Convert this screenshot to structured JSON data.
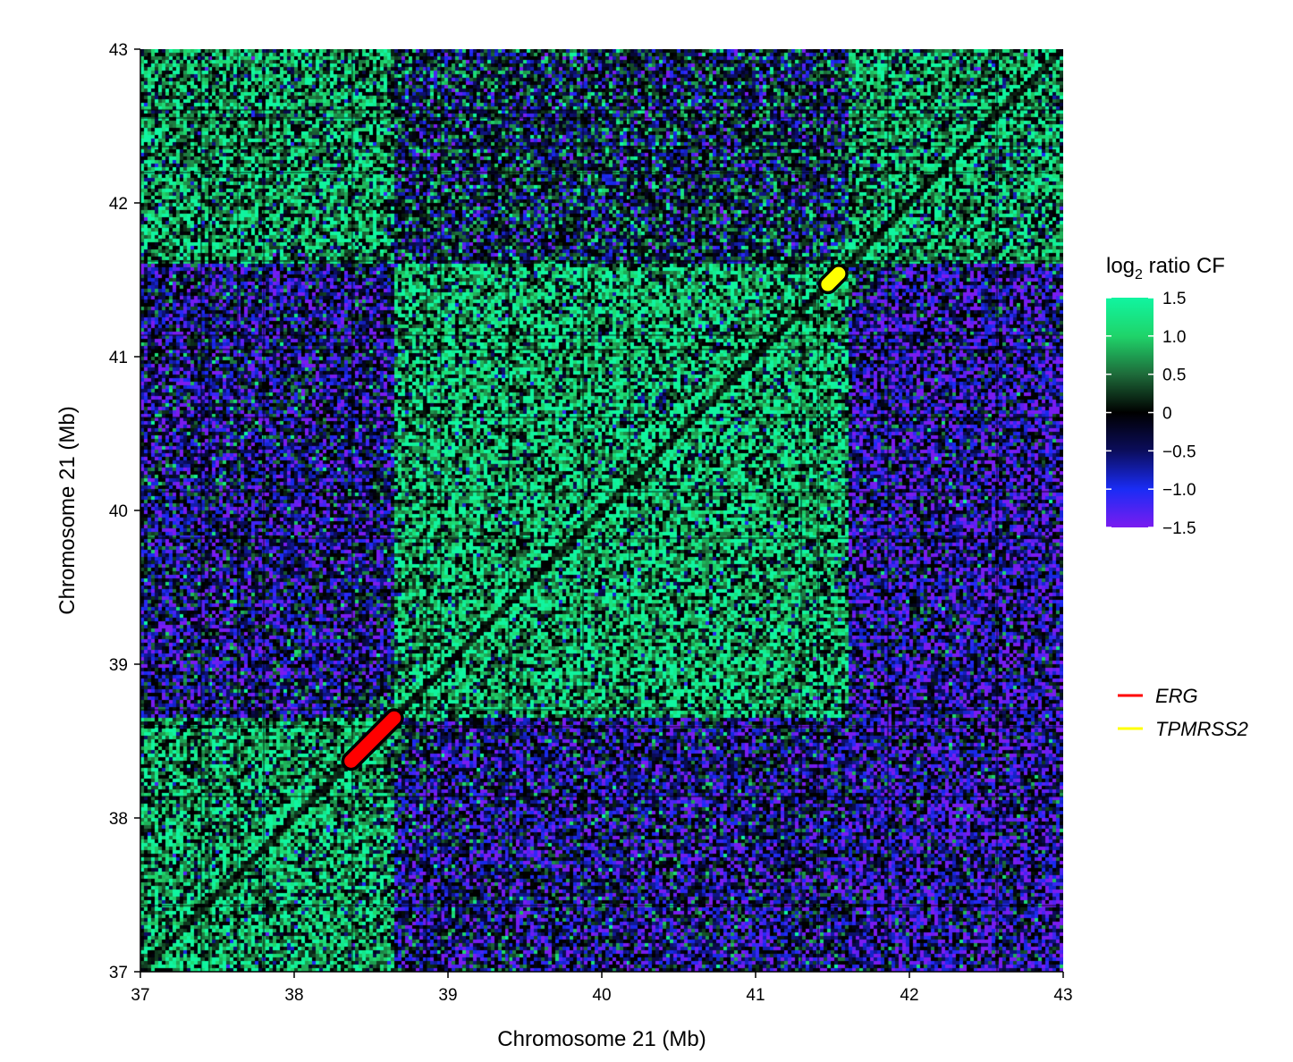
{
  "chart_data": {
    "type": "heatmap",
    "xlabel": "Chromosome 21 (Mb)",
    "ylabel": "Chromosome 21 (Mb)",
    "xlim": [
      37,
      43
    ],
    "ylim": [
      37,
      43
    ],
    "x_ticks": [
      "37",
      "38",
      "39",
      "40",
      "41",
      "42",
      "43"
    ],
    "y_ticks": [
      "37",
      "38",
      "39",
      "40",
      "41",
      "42",
      "43"
    ],
    "colorbar": {
      "title_base": "log",
      "title_sub": "2",
      "title_rest": " ratio CF",
      "range": [
        -1.5,
        1.5
      ],
      "ticks": [
        "1.5",
        "1.0",
        "0.5",
        "0",
        "−0.5",
        "−1.0",
        "−1.5"
      ],
      "tick_values": [
        1.5,
        1.0,
        0.5,
        0,
        -0.5,
        -1.0,
        -1.5
      ],
      "colors": [
        "#7a1cf0",
        "#1a2cf5",
        "#0b0d5c",
        "#000000",
        "#1e6b3a",
        "#1fd46a",
        "#10f5a0"
      ]
    },
    "domains": [
      {
        "x": [
          37.0,
          38.65
        ],
        "y": [
          37.0,
          38.65
        ],
        "value": 0.8
      },
      {
        "x": [
          38.65,
          41.6
        ],
        "y": [
          38.65,
          41.6
        ],
        "value": 0.85
      },
      {
        "x": [
          41.6,
          43.0
        ],
        "y": [
          41.6,
          43.0
        ],
        "value": 0.7
      },
      {
        "x": [
          37.0,
          38.65
        ],
        "y": [
          41.6,
          43.0
        ],
        "value": 0.75
      },
      {
        "x": [
          38.65,
          41.6
        ],
        "y": [
          37.0,
          38.65
        ],
        "value": -0.55
      },
      {
        "x": [
          37.0,
          38.65
        ],
        "y": [
          38.65,
          41.6
        ],
        "value": -0.55
      },
      {
        "x": [
          41.6,
          43.0
        ],
        "y": [
          37.0,
          41.6
        ],
        "value": -0.75
      },
      {
        "x": [
          38.65,
          41.6
        ],
        "y": [
          41.6,
          43.0
        ],
        "value": -0.1
      }
    ],
    "highlights": [
      {
        "name": "ERG",
        "x": [
          38.37,
          38.65
        ],
        "y": [
          38.37,
          38.65
        ],
        "color": "#ff0000"
      },
      {
        "name": "TPMRSS2",
        "x": [
          41.47,
          41.54
        ],
        "y": [
          41.47,
          41.54
        ],
        "color": "#ffff00"
      }
    ],
    "legend": [
      {
        "label": "ERG",
        "color": "#ff0000"
      },
      {
        "label": "TPMRSS2",
        "color": "#ffff00"
      }
    ]
  }
}
